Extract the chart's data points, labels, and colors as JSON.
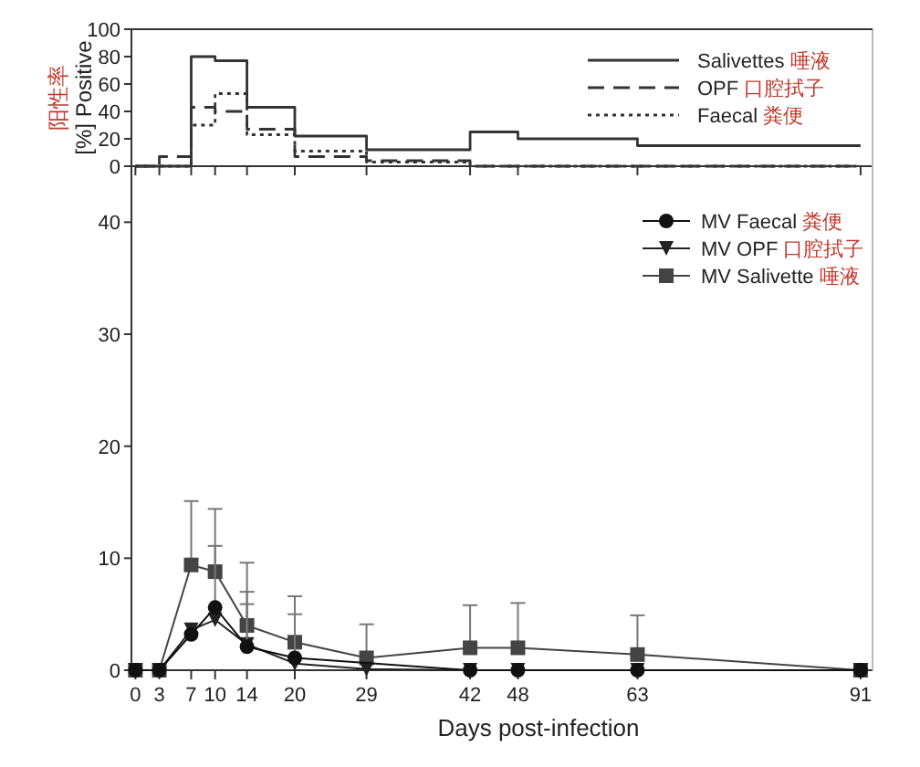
{
  "chart_data": [
    {
      "type": "step",
      "ylabel": "阳性率 [%] Positive",
      "x": [
        0,
        3,
        7,
        10,
        14,
        20,
        29,
        42,
        48,
        63,
        91
      ],
      "xlim": [
        -0.5,
        92.5
      ],
      "ylim": [
        0,
        100
      ],
      "yticks": [
        0,
        20,
        40,
        60,
        80,
        100
      ],
      "xticks": [
        {
          "value": 0,
          "label": null
        },
        {
          "value": 3,
          "label": null
        },
        {
          "value": 7,
          "label": null
        },
        {
          "value": 10,
          "label": null
        },
        {
          "value": 14,
          "label": null
        },
        {
          "value": 20,
          "label": null
        },
        {
          "value": 29,
          "label": null
        },
        {
          "value": 42,
          "label": null
        },
        {
          "value": 48,
          "label": null
        },
        {
          "value": 63,
          "label": null
        },
        {
          "value": 91,
          "label": null
        }
      ],
      "tick_labels": "y",
      "legend": "top right",
      "series": [
        {
          "name": "Salivettes 唾液",
          "color": "#333333",
          "line_style": "solid",
          "values": [
            0,
            0,
            80,
            77,
            43,
            22,
            12,
            25,
            20,
            15,
            15
          ]
        },
        {
          "name": "OPF 口腔拭子",
          "color": "#333333",
          "line_style": "dashed",
          "values": [
            0,
            7,
            43,
            40,
            27,
            7,
            4,
            0,
            0,
            0,
            0
          ]
        },
        {
          "name": "Faecal 粪便",
          "color": "#333333",
          "line_style": "dotted",
          "values": [
            0,
            0,
            30,
            53,
            23,
            11,
            3,
            0,
            0,
            0,
            0
          ]
        }
      ]
    },
    {
      "type": "line",
      "xlabel": "Days post-infection",
      "x": [
        0,
        3,
        7,
        10,
        14,
        20,
        29,
        42,
        48,
        63,
        91
      ],
      "xlim": [
        -0.5,
        92.5
      ],
      "ylim": [
        0,
        45
      ],
      "yticks": [
        0,
        10,
        20,
        30,
        40
      ],
      "xticks": [
        0,
        3,
        7,
        10,
        14,
        20,
        29,
        42,
        48,
        63,
        91
      ],
      "legend": "top right",
      "series": [
        {
          "name": "MV Faecal 粪便",
          "color": "#111111",
          "marker": "circle",
          "values": [
            0,
            0,
            3.2,
            5.6,
            2.1,
            1.1,
            null,
            0,
            0,
            0,
            0
          ],
          "errors": [
            null,
            null,
            null,
            [
              5.6,
              11.1
            ],
            [
              2.1,
              7.0
            ],
            [
              1.1,
              5.0
            ],
            null,
            null,
            null,
            null,
            null
          ]
        },
        {
          "name": "MV OPF 口腔拭子",
          "color": "#222222",
          "marker": "triangle",
          "values": [
            0,
            0,
            3.6,
            4.5,
            2.3,
            0.6,
            0.1,
            0,
            0,
            0,
            0
          ],
          "errors": [
            null,
            null,
            null,
            null,
            [
              2.3,
              5.9
            ],
            null,
            null,
            null,
            null,
            null,
            null
          ]
        },
        {
          "name": "MV Salivette 唾液",
          "color": "#444444",
          "marker": "square",
          "values": [
            0,
            0,
            9.4,
            8.8,
            4.0,
            2.5,
            1.1,
            2.0,
            2.0,
            1.4,
            0
          ],
          "errors": [
            null,
            null,
            [
              9.4,
              15.1
            ],
            [
              8.8,
              14.4
            ],
            [
              4.0,
              9.6
            ],
            [
              2.5,
              6.6
            ],
            [
              1.1,
              4.1
            ],
            [
              2.0,
              5.8
            ],
            [
              2.0,
              6.0
            ],
            [
              1.4,
              4.9
            ],
            null
          ]
        }
      ]
    }
  ]
}
